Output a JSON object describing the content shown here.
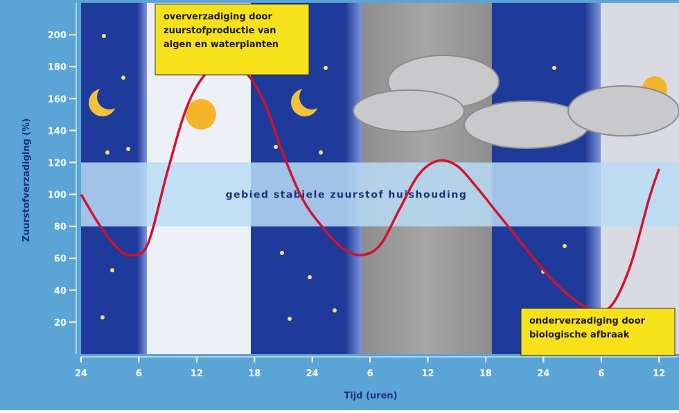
{
  "chart_data": {
    "type": "line",
    "x_label": "Tijd (uren)",
    "y_label": "Zuurstofverzadiging (%)",
    "xlim": [
      0,
      62
    ],
    "ylim": [
      0,
      220
    ],
    "xticks": [
      {
        "value": 0,
        "label": "24"
      },
      6,
      12,
      18,
      24,
      {
        "value": 30,
        "label": "6"
      },
      {
        "value": 36,
        "label": "12"
      },
      {
        "value": 42,
        "label": "18"
      },
      {
        "value": 48,
        "label": "24"
      },
      {
        "value": 54,
        "label": "6"
      },
      {
        "value": 60,
        "label": "12"
      }
    ],
    "yticks": [
      20,
      40,
      60,
      80,
      100,
      120,
      140,
      160,
      180,
      200
    ],
    "stable_band": [
      80,
      120
    ],
    "stable_band_label": "gebied  stabiele  zuurstof  huishouding",
    "annotations": [
      {
        "lines": [
          "oververzadiging door",
          "zuurstofproductie van",
          "algen en waterplanten"
        ]
      },
      {
        "lines": [
          "onderverzadiging door",
          "biologische afbraak"
        ]
      }
    ],
    "series": [
      {
        "color": "#d3112c",
        "x": [
          0,
          2,
          4,
          5.5,
          7,
          9,
          11,
          13,
          15,
          17,
          19,
          21,
          23,
          25,
          27,
          29,
          31,
          33,
          35,
          37,
          39,
          41,
          43,
          45,
          47,
          49,
          51,
          53,
          55,
          57,
          59,
          60
        ],
        "values": [
          100,
          80,
          65,
          62,
          70,
          115,
          155,
          176,
          182,
          177,
          158,
          125,
          97,
          80,
          67,
          62,
          68,
          90,
          112,
          121,
          118,
          105,
          90,
          75,
          60,
          46,
          35,
          28,
          30,
          55,
          98,
          116
        ]
      }
    ]
  }
}
